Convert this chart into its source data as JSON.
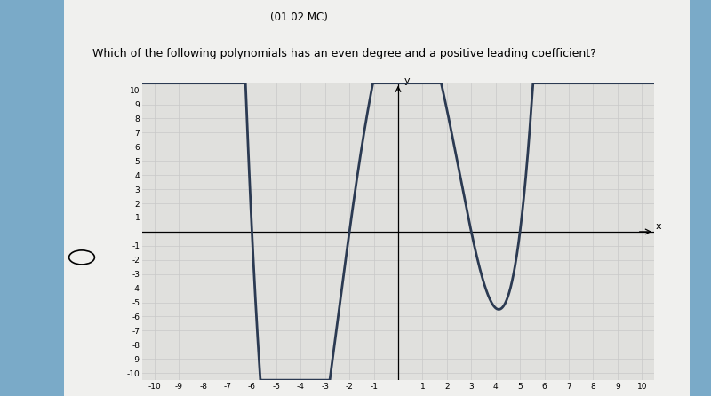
{
  "title": "Which of the following polynomials has an even degree and a positive leading coefficient?",
  "subtitle": "(01.02 MC)",
  "xlabel": "x",
  "ylabel": "y",
  "xlim": [
    -10.5,
    10.5
  ],
  "ylim": [
    -10.5,
    10.5
  ],
  "x_ticks": [
    -10,
    -9,
    -8,
    -7,
    -6,
    -5,
    -4,
    -3,
    -2,
    -1,
    1,
    2,
    3,
    4,
    5,
    6,
    7,
    8,
    9,
    10
  ],
  "y_ticks": [
    -10,
    -9,
    -8,
    -7,
    -6,
    -5,
    -4,
    -3,
    -2,
    -1,
    1,
    2,
    3,
    4,
    5,
    6,
    7,
    8,
    9,
    10
  ],
  "grid_color": "#c8c8c8",
  "curve_color": "#2b3a52",
  "outer_bg": "#7aaac8",
  "panel_bg": "#f0f0ee",
  "plot_bg": "#e0e0dd",
  "poly_a": 0.09,
  "poly_roots": [
    -6.0,
    -2.0,
    3.0,
    5.0
  ],
  "curve_linewidth": 2.0
}
